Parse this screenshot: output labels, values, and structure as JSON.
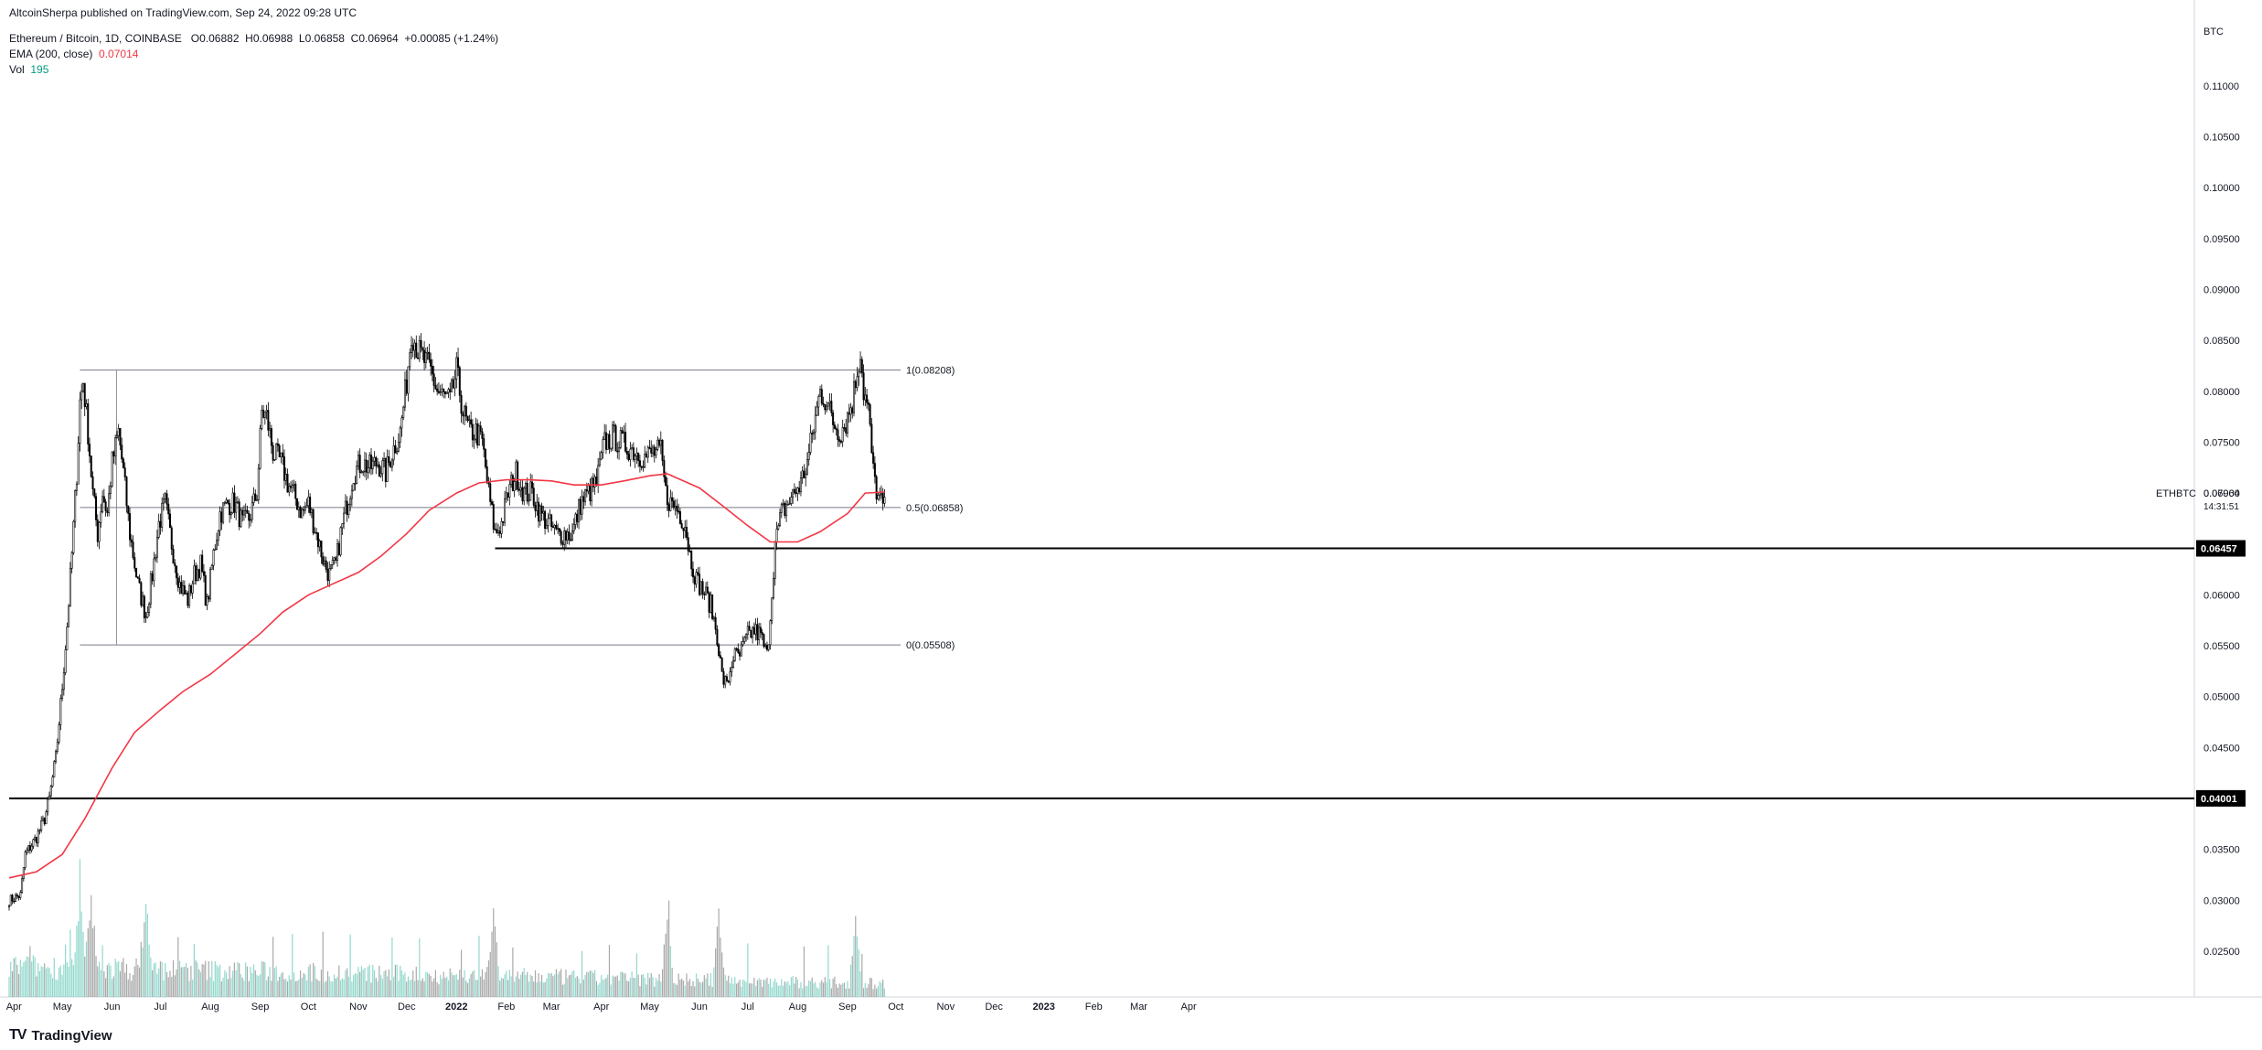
{
  "header": {
    "published": "AltcoinSherpa published on TradingView.com, Sep 24, 2022 09:28 UTC",
    "symbol": "Ethereum / Bitcoin, 1D, COINBASE",
    "open_label": "O",
    "open": "0.06882",
    "high_label": "H",
    "high": "0.06988",
    "low_label": "L",
    "low": "0.06858",
    "close_label": "C",
    "close": "0.06964",
    "change": "+0.00085 (+1.24%)",
    "ema_label": "EMA (200, close)",
    "ema_value": "0.07014",
    "vol_label": "Vol",
    "vol_value": "195"
  },
  "footer": {
    "brand": "TradingView",
    "logo": "TV"
  },
  "chart_data": {
    "type": "candlestick",
    "symbol": "ETHBTC",
    "currency_label": "BTC",
    "price_axis": {
      "ylim": [
        0.0205,
        0.1135
      ],
      "ticks": [
        "0.11000",
        "0.10500",
        "0.10000",
        "0.09500",
        "0.09000",
        "0.08500",
        "0.08000",
        "0.07500",
        "0.07000",
        "0.06500",
        "0.06000",
        "0.05500",
        "0.05000",
        "0.04500",
        "0.04000",
        "0.03500",
        "0.03000",
        "0.02500"
      ]
    },
    "time_axis": {
      "labels": [
        "Apr",
        "May",
        "Jun",
        "Jul",
        "Aug",
        "Sep",
        "Oct",
        "Nov",
        "Dec",
        "2022",
        "Feb",
        "Mar",
        "Apr",
        "May",
        "Jun",
        "Jul",
        "Aug",
        "Sep",
        "Oct",
        "Nov",
        "Dec",
        "2023",
        "Feb",
        "Mar",
        "Apr"
      ],
      "bold": [
        "2022",
        "2023"
      ]
    },
    "last_price": {
      "value": "0.06964",
      "countdown": "14:31:51",
      "symbol_label": "ETHBTC"
    },
    "horizontal_levels": [
      {
        "value": 0.06457,
        "label": "0.06457",
        "style": "bold",
        "from": "2022-01-25"
      },
      {
        "value": 0.04001,
        "label": "0.04001",
        "style": "bold",
        "from": "2021-03-29"
      }
    ],
    "fib_levels": [
      {
        "ratio": "1",
        "value": 0.08208,
        "label": "1(0.08208)"
      },
      {
        "ratio": "0.5",
        "value": 0.06858,
        "label": "0.5(0.06858)"
      },
      {
        "ratio": "0",
        "value": 0.05508,
        "label": "0(0.05508)"
      }
    ],
    "fib_range": {
      "start": "2021-05-12",
      "end": "2022-10-04"
    },
    "price_path": [
      [
        "2021-03-29",
        0.03
      ],
      [
        "2021-04-05",
        0.0305
      ],
      [
        "2021-04-08",
        0.0345
      ],
      [
        "2021-04-15",
        0.0362
      ],
      [
        "2021-04-20",
        0.038
      ],
      [
        "2021-04-23",
        0.04
      ],
      [
        "2021-04-27",
        0.044
      ],
      [
        "2021-05-01",
        0.051
      ],
      [
        "2021-05-04",
        0.057
      ],
      [
        "2021-05-07",
        0.064
      ],
      [
        "2021-05-10",
        0.072
      ],
      [
        "2021-05-12",
        0.079
      ],
      [
        "2021-05-14",
        0.081
      ],
      [
        "2021-05-17",
        0.076
      ],
      [
        "2021-05-20",
        0.07
      ],
      [
        "2021-05-23",
        0.066
      ],
      [
        "2021-05-26",
        0.07
      ],
      [
        "2021-05-29",
        0.068
      ],
      [
        "2021-06-01",
        0.073
      ],
      [
        "2021-06-05",
        0.076
      ],
      [
        "2021-06-08",
        0.072
      ],
      [
        "2021-06-12",
        0.066
      ],
      [
        "2021-06-17",
        0.061
      ],
      [
        "2021-06-22",
        0.058
      ],
      [
        "2021-06-26",
        0.062
      ],
      [
        "2021-06-30",
        0.067
      ],
      [
        "2021-07-04",
        0.069
      ],
      [
        "2021-07-08",
        0.065
      ],
      [
        "2021-07-13",
        0.061
      ],
      [
        "2021-07-18",
        0.0595
      ],
      [
        "2021-07-22",
        0.062
      ],
      [
        "2021-07-26",
        0.063
      ],
      [
        "2021-07-30",
        0.059
      ],
      [
        "2021-08-03",
        0.064
      ],
      [
        "2021-08-07",
        0.068
      ],
      [
        "2021-08-12",
        0.069
      ],
      [
        "2021-08-16",
        0.069
      ],
      [
        "2021-08-21",
        0.067
      ],
      [
        "2021-08-25",
        0.0675
      ],
      [
        "2021-08-30",
        0.07
      ],
      [
        "2021-09-02",
        0.078
      ],
      [
        "2021-09-05",
        0.0775
      ],
      [
        "2021-09-09",
        0.074
      ],
      [
        "2021-09-14",
        0.073
      ],
      [
        "2021-09-18",
        0.071
      ],
      [
        "2021-09-23",
        0.0695
      ],
      [
        "2021-09-27",
        0.068
      ],
      [
        "2021-10-01",
        0.069
      ],
      [
        "2021-10-06",
        0.066
      ],
      [
        "2021-10-11",
        0.063
      ],
      [
        "2021-10-14",
        0.062
      ],
      [
        "2021-10-18",
        0.063
      ],
      [
        "2021-10-21",
        0.066
      ],
      [
        "2021-10-25",
        0.069
      ],
      [
        "2021-10-29",
        0.072
      ],
      [
        "2021-11-03",
        0.073
      ],
      [
        "2021-11-08",
        0.0725
      ],
      [
        "2021-11-13",
        0.073
      ],
      [
        "2021-11-18",
        0.072
      ],
      [
        "2021-11-22",
        0.074
      ],
      [
        "2021-11-27",
        0.076
      ],
      [
        "2021-12-01",
        0.081
      ],
      [
        "2021-12-04",
        0.086
      ],
      [
        "2021-12-08",
        0.084
      ],
      [
        "2021-12-12",
        0.083
      ],
      [
        "2021-12-16",
        0.082
      ],
      [
        "2021-12-20",
        0.08
      ],
      [
        "2021-12-24",
        0.0795
      ],
      [
        "2021-12-28",
        0.079
      ],
      [
        "2022-01-01",
        0.082
      ],
      [
        "2022-01-05",
        0.078
      ],
      [
        "2022-01-09",
        0.076
      ],
      [
        "2022-01-13",
        0.076
      ],
      [
        "2022-01-17",
        0.075
      ],
      [
        "2022-01-21",
        0.07
      ],
      [
        "2022-01-25",
        0.066
      ],
      [
        "2022-01-29",
        0.067
      ],
      [
        "2022-02-02",
        0.07
      ],
      [
        "2022-02-07",
        0.072
      ],
      [
        "2022-02-12",
        0.07
      ],
      [
        "2022-02-17",
        0.07
      ],
      [
        "2022-02-22",
        0.068
      ],
      [
        "2022-02-27",
        0.067
      ],
      [
        "2022-03-04",
        0.066
      ],
      [
        "2022-03-09",
        0.066
      ],
      [
        "2022-03-14",
        0.066
      ],
      [
        "2022-03-19",
        0.069
      ],
      [
        "2022-03-24",
        0.07
      ],
      [
        "2022-03-29",
        0.071
      ],
      [
        "2022-04-03",
        0.075
      ],
      [
        "2022-04-08",
        0.0755
      ],
      [
        "2022-04-13",
        0.075
      ],
      [
        "2022-04-18",
        0.0745
      ],
      [
        "2022-04-23",
        0.074
      ],
      [
        "2022-04-28",
        0.0735
      ],
      [
        "2022-05-03",
        0.074
      ],
      [
        "2022-05-08",
        0.074
      ],
      [
        "2022-05-11",
        0.07
      ],
      [
        "2022-05-14",
        0.069
      ],
      [
        "2022-05-18",
        0.0685
      ],
      [
        "2022-05-23",
        0.067
      ],
      [
        "2022-05-26",
        0.064
      ],
      [
        "2022-05-30",
        0.0615
      ],
      [
        "2022-06-03",
        0.0605
      ],
      [
        "2022-06-08",
        0.059
      ],
      [
        "2022-06-12",
        0.056
      ],
      [
        "2022-06-15",
        0.052
      ],
      [
        "2022-06-18",
        0.051
      ],
      [
        "2022-06-22",
        0.054
      ],
      [
        "2022-06-26",
        0.054
      ],
      [
        "2022-07-01",
        0.056
      ],
      [
        "2022-07-05",
        0.0565
      ],
      [
        "2022-07-09",
        0.056
      ],
      [
        "2022-07-13",
        0.054
      ],
      [
        "2022-07-15",
        0.058
      ],
      [
        "2022-07-18",
        0.065
      ],
      [
        "2022-07-22",
        0.068
      ],
      [
        "2022-07-26",
        0.069
      ],
      [
        "2022-07-30",
        0.07
      ],
      [
        "2022-08-03",
        0.071
      ],
      [
        "2022-08-07",
        0.073
      ],
      [
        "2022-08-11",
        0.0765
      ],
      [
        "2022-08-15",
        0.08
      ],
      [
        "2022-08-19",
        0.079
      ],
      [
        "2022-08-23",
        0.077
      ],
      [
        "2022-08-27",
        0.076
      ],
      [
        "2022-08-31",
        0.077
      ],
      [
        "2022-09-04",
        0.079
      ],
      [
        "2022-09-07",
        0.082
      ],
      [
        "2022-09-09",
        0.084
      ],
      [
        "2022-09-11",
        0.08
      ],
      [
        "2022-09-14",
        0.078
      ],
      [
        "2022-09-17",
        0.072
      ],
      [
        "2022-09-20",
        0.0695
      ],
      [
        "2022-09-23",
        0.0688
      ],
      [
        "2022-09-24",
        0.0696
      ]
    ],
    "ema_200": [
      [
        "2021-03-29",
        0.0322
      ],
      [
        "2021-04-15",
        0.0328
      ],
      [
        "2021-05-01",
        0.0345
      ],
      [
        "2021-05-15",
        0.038
      ],
      [
        "2021-06-01",
        0.043
      ],
      [
        "2021-06-15",
        0.0465
      ],
      [
        "2021-07-01",
        0.0487
      ],
      [
        "2021-07-15",
        0.0505
      ],
      [
        "2021-08-01",
        0.0522
      ],
      [
        "2021-08-15",
        0.054
      ],
      [
        "2021-09-01",
        0.0562
      ],
      [
        "2021-09-15",
        0.0583
      ],
      [
        "2021-10-01",
        0.06
      ],
      [
        "2021-10-15",
        0.061
      ],
      [
        "2021-11-01",
        0.0622
      ],
      [
        "2021-11-15",
        0.0638
      ],
      [
        "2021-12-01",
        0.066
      ],
      [
        "2021-12-15",
        0.0683
      ],
      [
        "2022-01-01",
        0.07
      ],
      [
        "2022-01-15",
        0.071
      ],
      [
        "2022-02-01",
        0.0713
      ],
      [
        "2022-02-15",
        0.0713
      ],
      [
        "2022-03-01",
        0.0712
      ],
      [
        "2022-03-15",
        0.0708
      ],
      [
        "2022-04-01",
        0.0708
      ],
      [
        "2022-04-15",
        0.0712
      ],
      [
        "2022-05-01",
        0.0717
      ],
      [
        "2022-05-12",
        0.0719
      ],
      [
        "2022-06-01",
        0.0705
      ],
      [
        "2022-06-15",
        0.0688
      ],
      [
        "2022-07-01",
        0.0668
      ],
      [
        "2022-07-15",
        0.0652
      ],
      [
        "2022-08-01",
        0.0652
      ],
      [
        "2022-08-15",
        0.0662
      ],
      [
        "2022-09-01",
        0.068
      ],
      [
        "2022-09-12",
        0.07
      ],
      [
        "2022-09-24",
        0.0701
      ]
    ],
    "volume": {
      "ylim": [
        0,
        5000
      ],
      "approx_peak_dates": [
        "2021-05-12",
        "2021-05-19",
        "2021-06-22",
        "2022-01-24",
        "2022-05-12",
        "2022-06-13",
        "2022-09-06"
      ]
    }
  }
}
